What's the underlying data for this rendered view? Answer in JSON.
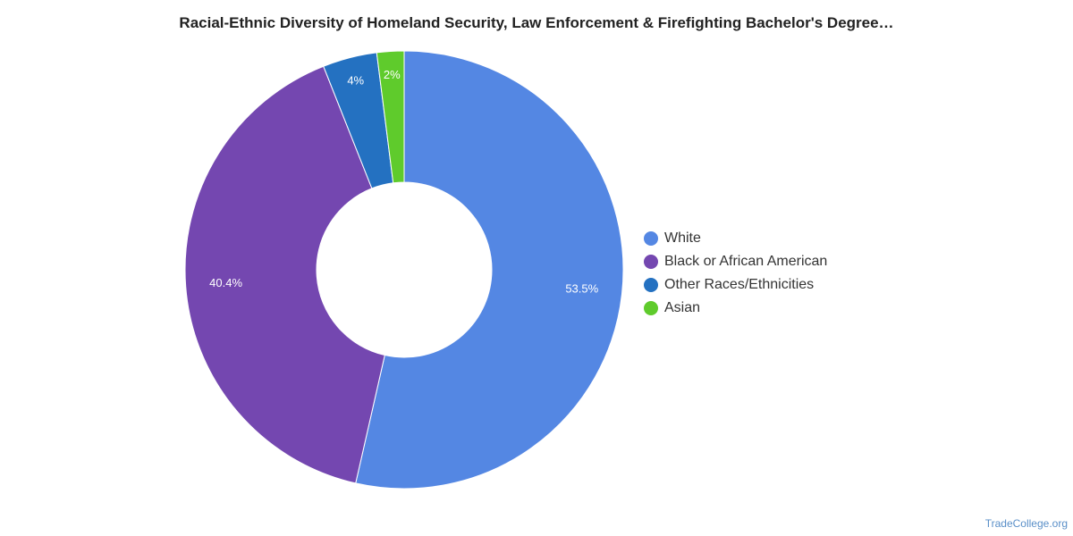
{
  "chart_data": {
    "type": "pie",
    "title": "Racial-Ethnic Diversity of Homeland Security, Law Enforcement & Firefighting Bachelor's Degree…",
    "donut": true,
    "legend_position": "right",
    "slices": [
      {
        "name": "White",
        "value": 53.5,
        "label": "53.5%",
        "color": "#5487e3"
      },
      {
        "name": "Black or African American",
        "value": 40.4,
        "label": "40.4%",
        "color": "#7447b0"
      },
      {
        "name": "Other Races/Ethnicities",
        "value": 4,
        "label": "4%",
        "color": "#2471c1"
      },
      {
        "name": "Asian",
        "value": 2,
        "label": "2%",
        "color": "#5fcb2c"
      }
    ]
  },
  "watermark": "TradeCollege.org"
}
